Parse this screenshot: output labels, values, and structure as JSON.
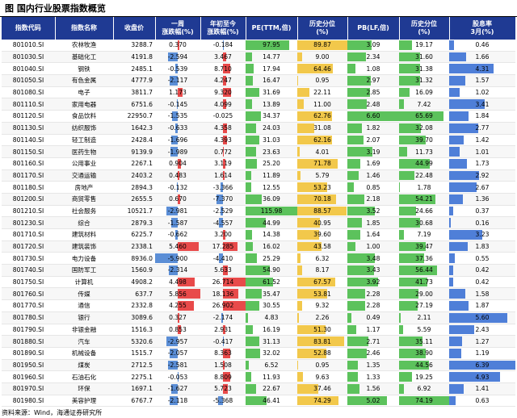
{
  "title": "图  国内行业股票指数概览",
  "headers": [
    "指数代码",
    "指数名称",
    "收盘价",
    "一周\n涨跌幅(%)",
    "年初至今\n涨跌幅(%)",
    "PE(TTM,倍)",
    "历史分位\n(%)",
    "PB(LF,倍)",
    "历史分位\n(%)",
    "股息率\n3月(%)"
  ],
  "rows": [
    [
      "801010.SI",
      "农林牧渔",
      "3288.7",
      "0.370",
      "-0.184",
      "97.95",
      "89.87",
      "3.09",
      "19.17",
      "0.46"
    ],
    [
      "801030.SI",
      "基础化工",
      "4191.8",
      "-2.594",
      "3.467",
      "14.77",
      "9.00",
      "2.34",
      "31.60",
      "1.66"
    ],
    [
      "801040.SI",
      "钢铁",
      "2485.1",
      "-0.539",
      "8.710",
      "17.94",
      "64.46",
      "1.08",
      "31.38",
      "4.31"
    ],
    [
      "801050.SI",
      "有色金属",
      "4777.9",
      "-2.117",
      "4.247",
      "16.47",
      "0.95",
      "2.97",
      "31.32",
      "1.57"
    ],
    [
      "801080.SI",
      "电子",
      "3811.7",
      "1.173",
      "9.320",
      "31.69",
      "22.11",
      "2.85",
      "16.09",
      "1.02"
    ],
    [
      "801110.SI",
      "家用电器",
      "6751.6",
      "-0.145",
      "4.099",
      "13.89",
      "11.00",
      "2.48",
      "7.42",
      "3.41"
    ],
    [
      "801120.SI",
      "食品饮料",
      "22950.7",
      "-1.535",
      "-0.025",
      "34.37",
      "62.76",
      "6.60",
      "65.69",
      "1.84"
    ],
    [
      "801130.SI",
      "纺织服饰",
      "1642.3",
      "-0.633",
      "4.358",
      "24.03",
      "31.08",
      "1.82",
      "32.08",
      "2.77"
    ],
    [
      "801140.SI",
      "轻工制造",
      "2428.4",
      "-1.696",
      "4.393",
      "31.03",
      "62.16",
      "2.07",
      "39.70",
      "1.42"
    ],
    [
      "801150.SI",
      "医药生物",
      "9139.9",
      "-1.989",
      "0.772",
      "23.63",
      "4.01",
      "3.19",
      "11.73",
      "1.01"
    ],
    [
      "801160.SI",
      "公用事业",
      "2267.1",
      "0.904",
      "3.119",
      "25.20",
      "71.78",
      "1.69",
      "44.99",
      "1.73"
    ],
    [
      "801170.SI",
      "交通运输",
      "2403.2",
      "0.483",
      "1.614",
      "11.89",
      "5.79",
      "1.46",
      "22.48",
      "2.92"
    ],
    [
      "801180.SI",
      "房地产",
      "2894.3",
      "-0.132",
      "-3.366",
      "12.55",
      "53.23",
      "0.85",
      "1.78",
      "2.67"
    ],
    [
      "801200.SI",
      "商贸零售",
      "2655.5",
      "0.670",
      "-7.370",
      "36.09",
      "70.18",
      "2.18",
      "54.21",
      "1.36"
    ],
    [
      "801210.SI",
      "社会服务",
      "10521.7",
      "-2.981",
      "-2.529",
      "115.98",
      "88.57",
      "3.52",
      "24.66",
      "0.37"
    ],
    [
      "801230.SI",
      "综合",
      "2879.3",
      "-1.587",
      "-4.557",
      "44.99",
      "40.95",
      "1.85",
      "30.68",
      "0.16"
    ],
    [
      "801710.SI",
      "建筑材料",
      "6225.7",
      "-0.662",
      "3.200",
      "14.38",
      "39.60",
      "1.64",
      "7.19",
      "3.23"
    ],
    [
      "801720.SI",
      "建筑装饰",
      "2338.1",
      "5.460",
      "17.285",
      "16.02",
      "43.58",
      "1.00",
      "39.47",
      "1.83"
    ],
    [
      "801730.SI",
      "电力设备",
      "8936.0",
      "-5.900",
      "-4.410",
      "25.29",
      "6.32",
      "3.48",
      "37.36",
      "0.55"
    ],
    [
      "801740.SI",
      "国防军工",
      "1560.9",
      "-2.314",
      "5.633",
      "54.90",
      "8.17",
      "3.43",
      "56.44",
      "0.42"
    ],
    [
      "801750.SI",
      "计算机",
      "4908.2",
      "4.498",
      "26.714",
      "61.52",
      "67.57",
      "3.92",
      "41.73",
      "0.42"
    ],
    [
      "801760.SI",
      "传媒",
      "637.7",
      "5.856",
      "18.136",
      "35.47",
      "53.81",
      "2.28",
      "29.00",
      "1.58"
    ],
    [
      "801770.SI",
      "通信",
      "2332.8",
      "4.255",
      "26.902",
      "30.55",
      "9.32",
      "2.28",
      "27.19",
      "1.87"
    ],
    [
      "801780.SI",
      "银行",
      "3089.6",
      "0.327",
      "-2.174",
      "4.83",
      "2.26",
      "0.49",
      "2.11",
      "5.60"
    ],
    [
      "801790.SI",
      "非银金融",
      "1516.3",
      "0.853",
      "2.931",
      "16.19",
      "51.30",
      "1.17",
      "5.59",
      "2.43"
    ],
    [
      "801880.SI",
      "汽车",
      "5320.6",
      "-2.957",
      "-0.417",
      "31.13",
      "83.81",
      "2.71",
      "35.11",
      "1.27"
    ],
    [
      "801890.SI",
      "机械设备",
      "1515.7",
      "-2.057",
      "8.363",
      "32.02",
      "52.88",
      "2.46",
      "38.90",
      "1.19"
    ],
    [
      "801950.SI",
      "煤炭",
      "2712.5",
      "-2.581",
      "1.508",
      "6.52",
      "0.95",
      "1.35",
      "44.56",
      "6.39"
    ],
    [
      "801960.SI",
      "石油石化",
      "2275.1",
      "-0.053",
      "8.809",
      "11.93",
      "9.63",
      "1.33",
      "19.25",
      "4.93"
    ],
    [
      "801970.SI",
      "环保",
      "1697.1",
      "-1.627",
      "5.723",
      "22.67",
      "37.46",
      "1.56",
      "6.92",
      "1.41"
    ],
    [
      "801980.SI",
      "美容护理",
      "6767.7",
      "-2.118",
      "-5.368",
      "46.41",
      "74.29",
      "5.02",
      "74.19",
      "0.63"
    ]
  ],
  "footer": "资料来源：Wind，海通证券研究所"
}
